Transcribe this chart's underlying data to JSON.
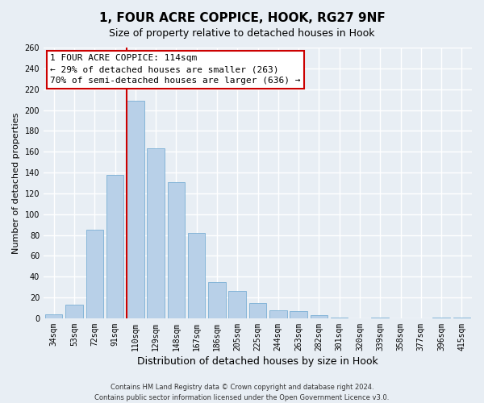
{
  "title": "1, FOUR ACRE COPPICE, HOOK, RG27 9NF",
  "subtitle": "Size of property relative to detached houses in Hook",
  "xlabel": "Distribution of detached houses by size in Hook",
  "ylabel": "Number of detached properties",
  "categories": [
    "34sqm",
    "53sqm",
    "72sqm",
    "91sqm",
    "110sqm",
    "129sqm",
    "148sqm",
    "167sqm",
    "186sqm",
    "205sqm",
    "225sqm",
    "244sqm",
    "263sqm",
    "282sqm",
    "301sqm",
    "320sqm",
    "339sqm",
    "358sqm",
    "377sqm",
    "396sqm",
    "415sqm"
  ],
  "values": [
    4,
    13,
    85,
    138,
    209,
    163,
    131,
    82,
    35,
    26,
    15,
    8,
    7,
    3,
    1,
    0,
    1,
    0,
    0,
    1,
    1
  ],
  "bar_color": "#b8d0e8",
  "bar_edgecolor": "#7aafd4",
  "vline_index": 4,
  "vline_color": "#cc0000",
  "ylim": [
    0,
    260
  ],
  "yticks": [
    0,
    20,
    40,
    60,
    80,
    100,
    120,
    140,
    160,
    180,
    200,
    220,
    240,
    260
  ],
  "annotation_title": "1 FOUR ACRE COPPICE: 114sqm",
  "annotation_line1": "← 29% of detached houses are smaller (263)",
  "annotation_line2": "70% of semi-detached houses are larger (636) →",
  "annotation_box_facecolor": "#ffffff",
  "annotation_box_edgecolor": "#cc0000",
  "footer_line1": "Contains HM Land Registry data © Crown copyright and database right 2024.",
  "footer_line2": "Contains public sector information licensed under the Open Government Licence v3.0.",
  "background_color": "#e8eef4",
  "grid_color": "#ffffff",
  "title_fontsize": 11,
  "subtitle_fontsize": 9,
  "tick_fontsize": 7,
  "ylabel_fontsize": 8,
  "xlabel_fontsize": 9,
  "annotation_fontsize": 8,
  "footer_fontsize": 6
}
